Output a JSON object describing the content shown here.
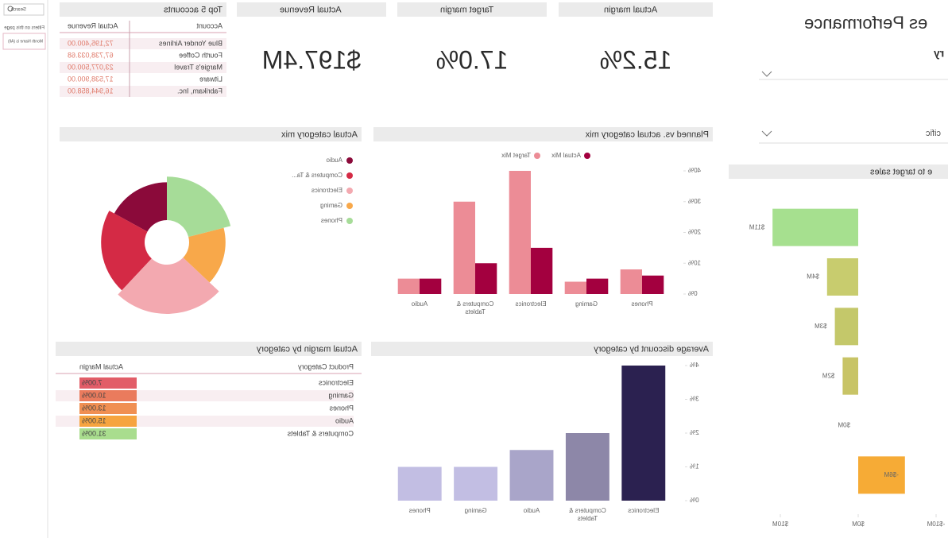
{
  "filters": {
    "search": "Search",
    "title": "Filters on this page",
    "item": "Month Name is (All)"
  },
  "header": {
    "title": "es Performance",
    "fragment_1": "ry",
    "fragment_2": "cific"
  },
  "top_accounts": {
    "title": "Top 5 accounts",
    "columns": [
      "Account",
      "Actual Revenue"
    ],
    "rows": [
      [
        "Blue Yonder Airlines",
        "72,195,400.00"
      ],
      [
        "Fourth Coffee",
        "67,738,033.68"
      ],
      [
        "Margie's Travel",
        "23,077,500.00"
      ],
      [
        "Litware",
        "17,538,900.00"
      ],
      [
        "Fabrikam, Inc.",
        "16,944,858.00"
      ]
    ]
  },
  "kpis": [
    {
      "title": "Actual Revenue",
      "value": "$197.4M"
    },
    {
      "title": "Target margin",
      "value": "17.0%"
    },
    {
      "title": "Actual margin",
      "value": "15.2%"
    }
  ],
  "margin_table": {
    "title": "Actual margin by category",
    "columns": [
      "Product Category",
      "Actual Margin"
    ],
    "rows": [
      [
        "Electronics",
        "7.00%"
      ],
      [
        "Gaming",
        "10.00%"
      ],
      [
        "Phones",
        "13.00%"
      ],
      [
        "Audio",
        "15.00%"
      ],
      [
        "Computers & Tablets",
        "31.00%"
      ]
    ],
    "colors": [
      "#e25d68",
      "#ea7b5d",
      "#f08f52",
      "#f6a43f",
      "#a9dd8e"
    ]
  },
  "chart_data": [
    {
      "type": "bar",
      "horizontal": true,
      "title": "e to target sales",
      "categories": [
        null,
        null,
        null,
        null,
        null,
        null
      ],
      "values": [
        11,
        4,
        3,
        2,
        0,
        -6
      ],
      "value_labels": [
        "$11M",
        "$4M",
        "$3M",
        "$2M",
        "$0M",
        "-$6M"
      ],
      "colors": [
        "#a6e08f",
        "#c8cc6e",
        "#c4c86a",
        "#c8c466",
        "#c8c466",
        "#f6ab36"
      ],
      "xlim": [
        -11,
        16
      ],
      "xticks": [
        {
          "value": -10,
          "label": "-$10M"
        },
        {
          "value": 0,
          "label": "$0M"
        },
        {
          "value": 10,
          "label": "$10M"
        }
      ]
    },
    {
      "type": "pie",
      "donut": true,
      "title": "Actual category mix",
      "categories": [
        "Audio",
        "Computers & Ta...",
        "Electronics",
        "Gaming",
        "Phones"
      ],
      "values": [
        17,
        21,
        25,
        16,
        21
      ],
      "colors": [
        "#8b0a3a",
        "#d42a45",
        "#f3a9b0",
        "#f8a84a",
        "#a6dc98"
      ]
    },
    {
      "type": "bar",
      "title": "Planned vs. actual category mix",
      "categories": [
        "Phones",
        "Gaming",
        "Electronics",
        "Computers & Tablets",
        "Audio"
      ],
      "series": [
        {
          "name": "Actual Mix",
          "color": "#a3003f",
          "values": [
            6,
            5,
            15,
            10,
            5
          ]
        },
        {
          "name": "Target Mix",
          "color": "#ec8c96",
          "values": [
            8,
            4,
            40,
            30,
            5
          ]
        }
      ],
      "ylim": [
        0,
        42
      ],
      "yticks": [
        {
          "value": 0,
          "label": "0%"
        },
        {
          "value": 10,
          "label": "10%"
        },
        {
          "value": 20,
          "label": "20%"
        },
        {
          "value": 30,
          "label": "30%"
        },
        {
          "value": 40,
          "label": "40%"
        }
      ]
    },
    {
      "type": "bar",
      "title": "Average discount by category",
      "categories": [
        "Electronics",
        "Computers & Tablets",
        "Audio",
        "Gaming",
        "Phones"
      ],
      "values": [
        4.0,
        2.0,
        1.5,
        1.0,
        1.0
      ],
      "colors": [
        "#2b2150",
        "#8d87a8",
        "#a9a5c9",
        "#c2bee3",
        "#c2bee3"
      ],
      "ylim": [
        0,
        4
      ],
      "yticks": [
        {
          "value": 0,
          "label": "0%"
        },
        {
          "value": 1,
          "label": "1%"
        },
        {
          "value": 2,
          "label": "2%"
        },
        {
          "value": 3,
          "label": "3%"
        },
        {
          "value": 4,
          "label": "4%"
        }
      ]
    }
  ]
}
